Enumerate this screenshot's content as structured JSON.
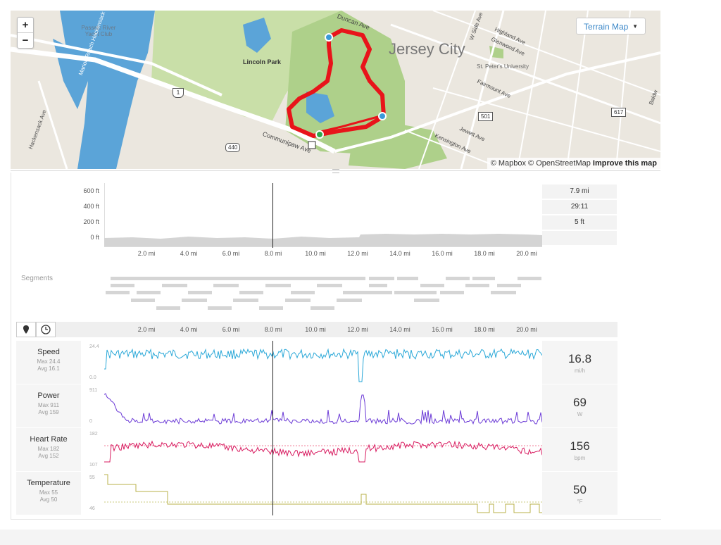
{
  "map": {
    "zoom_in_label": "+",
    "zoom_out_label": "−",
    "terrain_button": "Terrain Map",
    "attribution_a": "© Mapbox © OpenStreetMap",
    "attribution_b": "Improve this map",
    "labels": {
      "club": "Passaic River Yacht Club",
      "river": "Marion Reach Hackensack River",
      "lincoln": "Lincoln Park",
      "city": "Jersey City",
      "stpeters": "St. Peter's University",
      "hackensack_ave": "Hackensack Ave",
      "duncan": "Duncan Ave",
      "w_side": "W Side Ave",
      "highland": "Highland Ave",
      "glenwood": "Glenwood Ave",
      "fairmount": "Fairmount Ave",
      "jewett": "Jewett Ave",
      "kensington": "Kensington Ave",
      "communipaw": "Communipaw Ave",
      "route_1": "1",
      "route_440": "440",
      "route_501": "501",
      "route_617": "617",
      "baldwin": "Baldw"
    },
    "route_color": "#e8141a"
  },
  "elevation": {
    "y_ticks": [
      "600 ft",
      "400 ft",
      "200 ft",
      "0 ft"
    ],
    "x_ticks": [
      "2.0 mi",
      "4.0 mi",
      "6.0 mi",
      "8.0 mi",
      "10.0 mi",
      "12.0 mi",
      "14.0 mi",
      "16.0 mi",
      "18.0 mi",
      "20.0 mi"
    ],
    "stats": [
      "7.9 mi",
      "29:11",
      "5 ft"
    ]
  },
  "segments": {
    "title": "Segments"
  },
  "toolbar": {
    "distance_icon": "map-pin-icon",
    "time_icon": "clock-icon",
    "x_ticks": [
      "2.0 mi",
      "4.0 mi",
      "6.0 mi",
      "8.0 mi",
      "10.0 mi",
      "12.0 mi",
      "14.0 mi",
      "16.0 mi",
      "18.0 mi",
      "20.0 mi"
    ]
  },
  "metrics": [
    {
      "name": "Speed",
      "max": "Max 24.4",
      "avg": "Avg 16.1",
      "axis_top": "24.4",
      "axis_bottom": "0.0",
      "value": "16.8",
      "unit": "mi/h",
      "color": "#2aa8d8"
    },
    {
      "name": "Power",
      "max": "Max 911",
      "avg": "Avg 159",
      "axis_top": "911",
      "axis_bottom": "0",
      "value": "69",
      "unit": "W",
      "color": "#6b3ad6"
    },
    {
      "name": "Heart Rate",
      "max": "Max 182",
      "avg": "Avg 152",
      "axis_top": "182",
      "axis_bottom": "107",
      "value": "156",
      "unit": "bpm",
      "color": "#d81b60"
    },
    {
      "name": "Temperature",
      "max": "Max 55",
      "avg": "Avg 50",
      "axis_top": "55",
      "axis_bottom": "46",
      "value": "50",
      "unit": "°F",
      "color": "#b8b04a"
    }
  ]
}
